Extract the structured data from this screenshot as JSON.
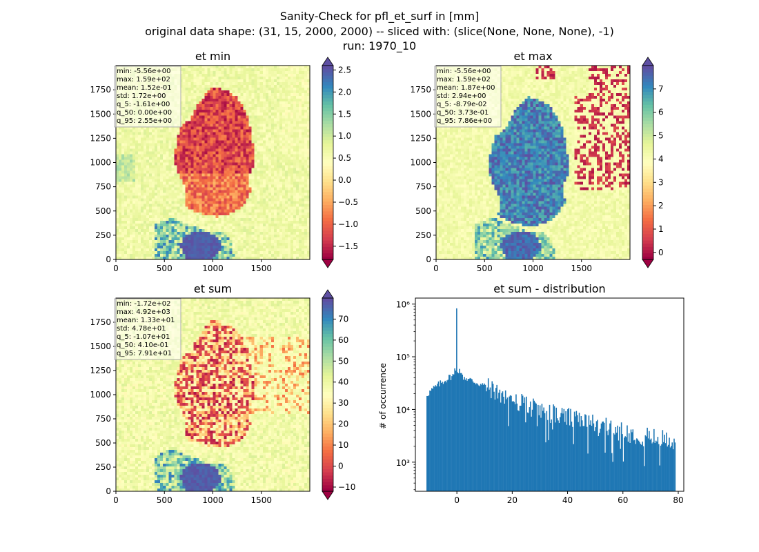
{
  "figure": {
    "title_line1": "Sanity-Check for pfl_et_surf in [mm]",
    "title_line2": "original data shape: (31, 15, 2000, 2000) -- sliced with: (slice(None, None, None), -1)",
    "title_line3": "run: 1970_10"
  },
  "colormap": {
    "name": "Spectral",
    "stops": [
      "#9e0142",
      "#d53e4f",
      "#f46d43",
      "#fdae61",
      "#fee08b",
      "#ffffbf",
      "#e6f598",
      "#abdda4",
      "#66c2a5",
      "#3288bd",
      "#5e4fa2"
    ]
  },
  "chart_data": [
    {
      "type": "heatmap",
      "title": "et min",
      "xlim": [
        0,
        2000
      ],
      "ylim": [
        0,
        2000
      ],
      "xticks": [
        "0",
        "500",
        "1000",
        "1500"
      ],
      "yticks": [
        "0",
        "250",
        "500",
        "750",
        "1000",
        "1250",
        "1500",
        "1750"
      ],
      "colorbar": {
        "range": [
          -1.8,
          2.6
        ],
        "ticks": [
          "−1.5",
          "−1.0",
          "−0.5",
          "0.0",
          "0.5",
          "1.0",
          "1.5",
          "2.0",
          "2.5"
        ],
        "extend": "both"
      },
      "stats": [
        "min: -5.56e+00",
        "max: 1.59e+02",
        "mean: 1.52e-01",
        "std: 1.72e+00",
        "q_5: -1.61e+00",
        "q_50: 0.00e+00",
        "q_95: 2.55e+00"
      ]
    },
    {
      "type": "heatmap",
      "title": "et max",
      "xlim": [
        0,
        2000
      ],
      "ylim": [
        0,
        2000
      ],
      "xticks": [
        "0",
        "500",
        "1000",
        "1500"
      ],
      "yticks": [
        "0",
        "250",
        "500",
        "750",
        "1000",
        "1250",
        "1500",
        "1750"
      ],
      "colorbar": {
        "range": [
          -0.3,
          8.0
        ],
        "ticks": [
          "0",
          "1",
          "2",
          "3",
          "4",
          "5",
          "6",
          "7"
        ],
        "extend": "both"
      },
      "stats": [
        "min: -5.56e+00",
        "max: 1.59e+02",
        "mean: 1.87e+00",
        "std: 2.94e+00",
        "q_5: -8.79e-02",
        "q_50: 3.73e-01",
        "q_95: 7.86e+00"
      ]
    },
    {
      "type": "heatmap",
      "title": "et sum",
      "xlim": [
        0,
        2000
      ],
      "ylim": [
        0,
        2000
      ],
      "xticks": [
        "0",
        "500",
        "1000",
        "1500"
      ],
      "yticks": [
        "0",
        "250",
        "500",
        "750",
        "1000",
        "1250",
        "1500",
        "1750"
      ],
      "colorbar": {
        "range": [
          -12,
          80
        ],
        "ticks": [
          "−10",
          "0",
          "10",
          "20",
          "30",
          "40",
          "50",
          "60",
          "70"
        ],
        "extend": "both"
      },
      "stats": [
        "min: -1.72e+02",
        "max: 4.92e+03",
        "mean: 1.33e+01",
        "std: 4.78e+01",
        "q_5: -1.07e+01",
        "q_50: 4.10e-01",
        "q_95: 7.91e+01"
      ]
    },
    {
      "type": "bar",
      "title": "et sum - distribution",
      "ylabel": "# of occurrence",
      "yscale": "log",
      "xlim": [
        -15,
        82
      ],
      "ylim": [
        280,
        1300000
      ],
      "xticks": [
        "0",
        "20",
        "40",
        "60",
        "80"
      ],
      "yticks": [
        "10³",
        "10⁴",
        "10⁵",
        "10⁶"
      ],
      "color": "#1f77b4",
      "profile_x": [
        -11,
        -8,
        -5,
        -3,
        -1,
        0,
        1,
        3,
        5,
        10,
        15,
        20,
        25,
        30,
        40,
        50,
        60,
        70,
        79
      ],
      "profile_y": [
        19000,
        26000,
        34000,
        40000,
        45000,
        830000,
        45000,
        40000,
        36000,
        28000,
        21000,
        15000,
        12000,
        9500,
        7000,
        5000,
        3800,
        2900,
        2500
      ]
    }
  ]
}
